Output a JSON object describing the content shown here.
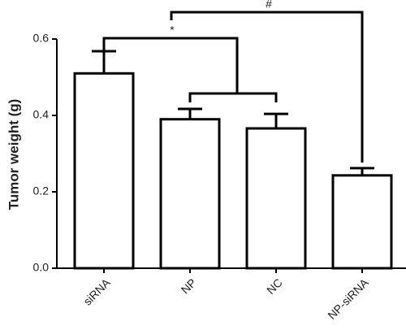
{
  "chart_data": {
    "type": "bar",
    "y_label": "Tumor weight (g)",
    "categories": [
      "siRNA",
      "NP",
      "NC",
      "NP-siRNA"
    ],
    "values": [
      0.51,
      0.39,
      0.366,
      0.243
    ],
    "errors": [
      0.058,
      0.027,
      0.038,
      0.019
    ],
    "color": "#ffffff",
    "ylim": [
      0,
      0.6
    ],
    "yticks": [
      {
        "value": 0,
        "label": "0.0"
      },
      0.2,
      0.4,
      0.6
    ],
    "annotations": [
      "*",
      "#"
    ]
  }
}
